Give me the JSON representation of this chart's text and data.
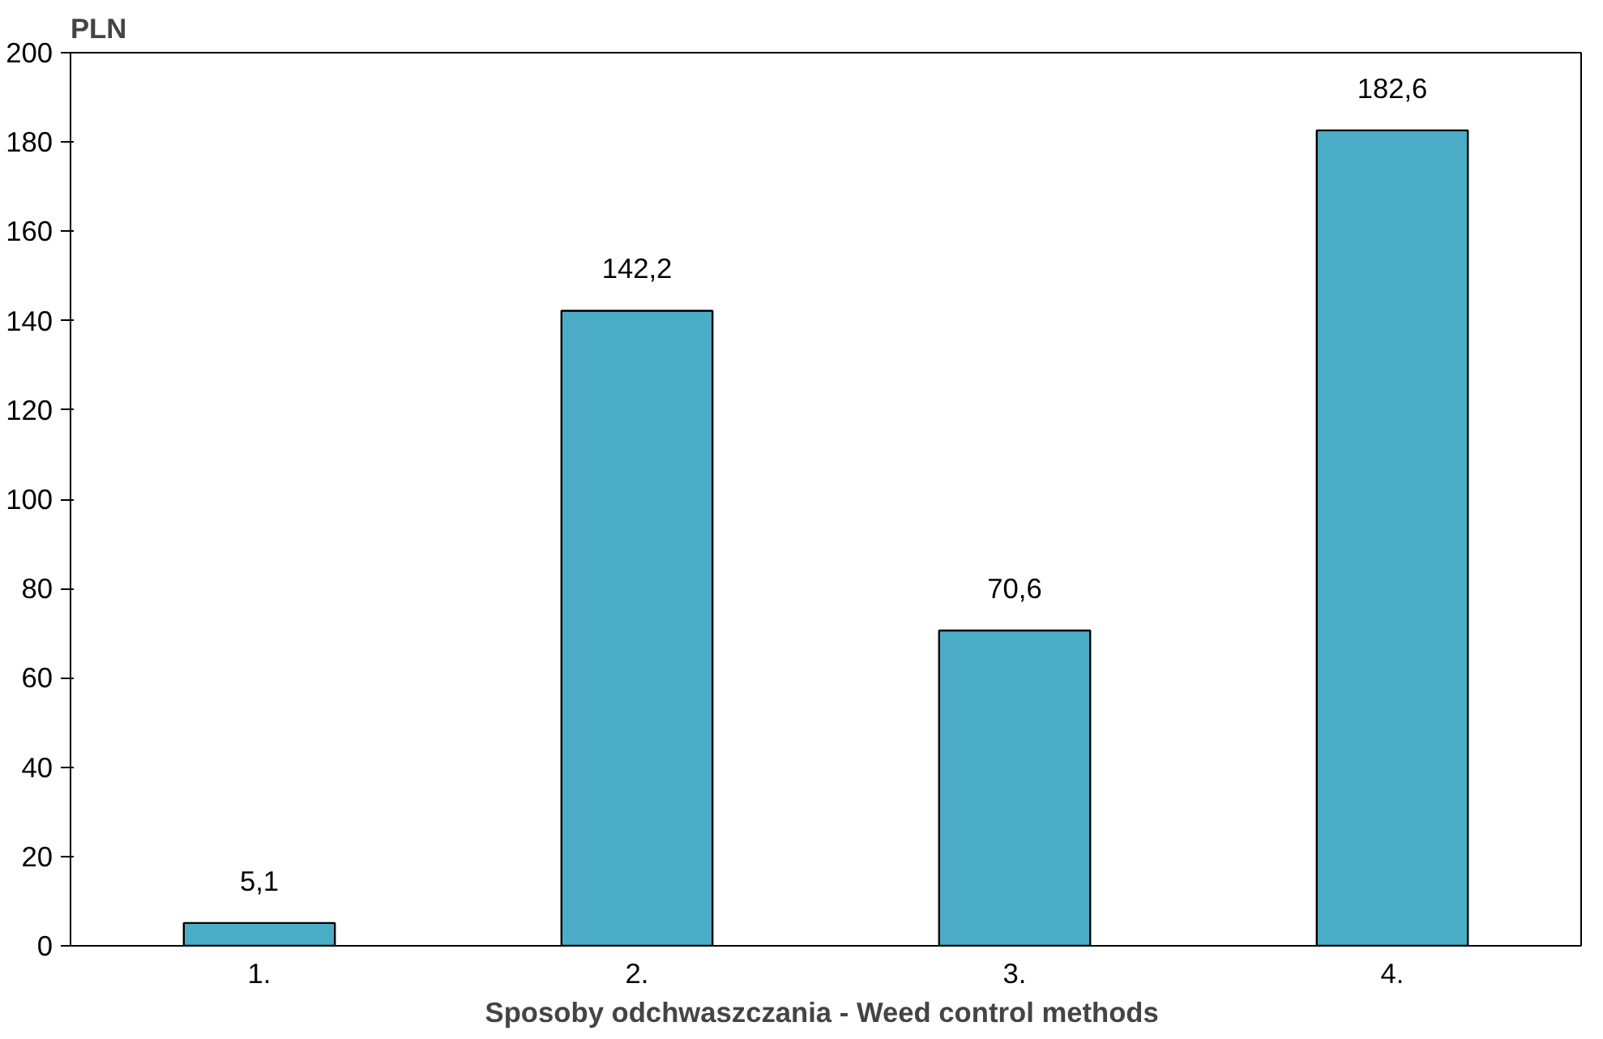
{
  "chart_data": {
    "type": "bar",
    "ylabel": "PLN",
    "xlabel": "Sposoby odchwaszczania  - Weed control methods",
    "categories": [
      "1.",
      "2.",
      "3.",
      "4."
    ],
    "values": [
      5.1,
      142.2,
      70.6,
      182.6
    ],
    "value_labels": [
      "5,1",
      "142,2",
      "70,6",
      "182,6"
    ],
    "color": "#4bacc6",
    "ylim": [
      0,
      200
    ],
    "yticks": [
      0,
      20,
      40,
      60,
      80,
      100,
      120,
      140,
      160,
      180,
      200
    ],
    "grid": false
  }
}
